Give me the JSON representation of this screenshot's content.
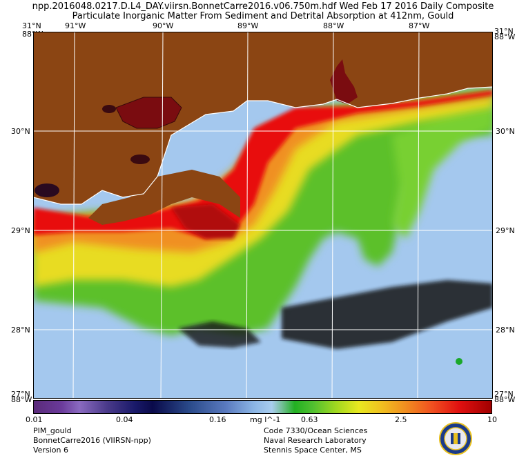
{
  "title_line1": "npp.2016048.0217.D.L4_DAY.viirsn.BonnetCarre2016.v06.750m.hdf   Wed Feb 17 2016 Daily Composite",
  "title_line2": "Particulate Inorganic Matter From Sediment and Detrital Absorption at 412nm, Gould",
  "lon_labels": [
    "91°W",
    "90°W",
    "89°W",
    "88°W",
    "87°W"
  ],
  "corner_labels": {
    "top_left": "31°N",
    "top_left_lon": "88°W",
    "top_right": "31°N",
    "top_right_lon": "88°W",
    "bottom_left": "88°W",
    "bottom_right": "88°W",
    "bottom_left_lat": "27°N",
    "bottom_right_lat": "27°N"
  },
  "lat_labels": [
    "30°N",
    "29°N",
    "28°N"
  ],
  "colorbar": {
    "ticks": [
      "0.01",
      "0.04",
      "0.16",
      "0.63",
      "2.5",
      "10"
    ],
    "unit": "mg l^-1",
    "scale": "log"
  },
  "footer_left": [
    "PIM_gould",
    "BonnetCarre2016 (VIIRSN-npp)",
    "Version 6"
  ],
  "footer_right": [
    "Code 7330/Ocean Sciences",
    "Naval Research Laboratory",
    "Stennis Space Center, MS"
  ],
  "colors": {
    "land": "#8B4513",
    "water_low": "#a4c8ee",
    "plume_green": "#6ccc2a",
    "plume_red": "#e81010"
  },
  "icons": {
    "seal": "navy-seal-icon"
  }
}
